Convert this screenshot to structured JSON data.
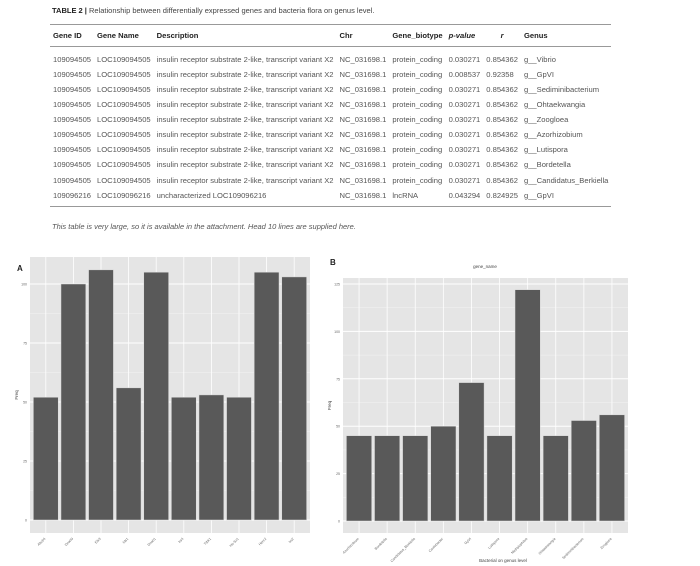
{
  "table": {
    "label": "TABLE 2 |",
    "caption": "Relationship between differentially expressed genes and bacteria flora on genus level.",
    "columns": [
      "Gene ID",
      "Gene Name",
      "Description",
      "Chr",
      "Gene_biotype",
      "p-value",
      "r",
      "Genus"
    ],
    "rows": [
      [
        "109094505",
        "LOC109094505",
        "insulin receptor substrate 2-like, transcript variant X2",
        "NC_031698.1",
        "protein_coding",
        "0.030271",
        "0.854362",
        "g__Vibrio"
      ],
      [
        "109094505",
        "LOC109094505",
        "insulin receptor substrate 2-like, transcript variant X2",
        "NC_031698.1",
        "protein_coding",
        "0.008537",
        "0.92358",
        "g__GpVI"
      ],
      [
        "109094505",
        "LOC109094505",
        "insulin receptor substrate 2-like, transcript variant X2",
        "NC_031698.1",
        "protein_coding",
        "0.030271",
        "0.854362",
        "g__Sediminibacterium"
      ],
      [
        "109094505",
        "LOC109094505",
        "insulin receptor substrate 2-like, transcript variant X2",
        "NC_031698.1",
        "protein_coding",
        "0.030271",
        "0.854362",
        "g__Ohtaekwangia"
      ],
      [
        "109094505",
        "LOC109094505",
        "insulin receptor substrate 2-like, transcript variant X2",
        "NC_031698.1",
        "protein_coding",
        "0.030271",
        "0.854362",
        "g__Zoogloea"
      ],
      [
        "109094505",
        "LOC109094505",
        "insulin receptor substrate 2-like, transcript variant X2",
        "NC_031698.1",
        "protein_coding",
        "0.030271",
        "0.854362",
        "g__Azorhizobium"
      ],
      [
        "109094505",
        "LOC109094505",
        "insulin receptor substrate 2-like, transcript variant X2",
        "NC_031698.1",
        "protein_coding",
        "0.030271",
        "0.854362",
        "g__Lutispora"
      ],
      [
        "109094505",
        "LOC109094505",
        "insulin receptor substrate 2-like, transcript variant X2",
        "NC_031698.1",
        "protein_coding",
        "0.030271",
        "0.854362",
        "g__Bordetella"
      ],
      [
        "109094505",
        "LOC109094505",
        "insulin receptor substrate 2-like, transcript variant X2",
        "NC_031698.1",
        "protein_coding",
        "0.030271",
        "0.854362",
        "g__Candidatus_Berkiella"
      ],
      [
        "109096216",
        "LOC109096216",
        "uncharacterized LOC109096216",
        "NC_031698.1",
        "lncRNA",
        "0.043294",
        "0.824925",
        "g__GpVI"
      ]
    ],
    "note": "This table is very large, so it is available in the attachment. Head 10 lines are supplied here."
  },
  "chart_data": [
    {
      "type": "bar",
      "panel": "A",
      "title": "",
      "xlabel": "",
      "ylabel": "Freq",
      "categories": [
        "Abcb4",
        "Dnah9",
        "Elk3",
        "Ids1",
        "Dnah1",
        "Irs4",
        "Ttbk1",
        "Hs-Sz1",
        "Herc2",
        "Irs2"
      ],
      "values": [
        52,
        100,
        106,
        56,
        105,
        52,
        53,
        52,
        105,
        103
      ],
      "yticks": [
        0,
        25,
        50,
        75,
        100
      ],
      "ylim": [
        0,
        110
      ],
      "grid": true,
      "bar_color": "#595959",
      "panel_bg": "#e5e5e5"
    },
    {
      "type": "bar",
      "panel": "B",
      "title": "gene_name",
      "xlabel": "Bacterial on genus level",
      "ylabel": "Freq",
      "categories": [
        "Azorhizobium",
        "Bordetella",
        "Candidatus_Berkiella",
        "Caulobacter",
        "GpVI",
        "Lutispora",
        "Methylophilus",
        "Ohtaekwangia",
        "Sediminibacterium",
        "Zoogloea"
      ],
      "values": [
        45,
        45,
        45,
        50,
        73,
        45,
        122,
        45,
        53,
        56
      ],
      "yticks": [
        0,
        25,
        50,
        75,
        100,
        125
      ],
      "ylim": [
        0,
        131
      ],
      "grid": true,
      "bar_color": "#595959",
      "panel_bg": "#e5e5e5"
    }
  ]
}
